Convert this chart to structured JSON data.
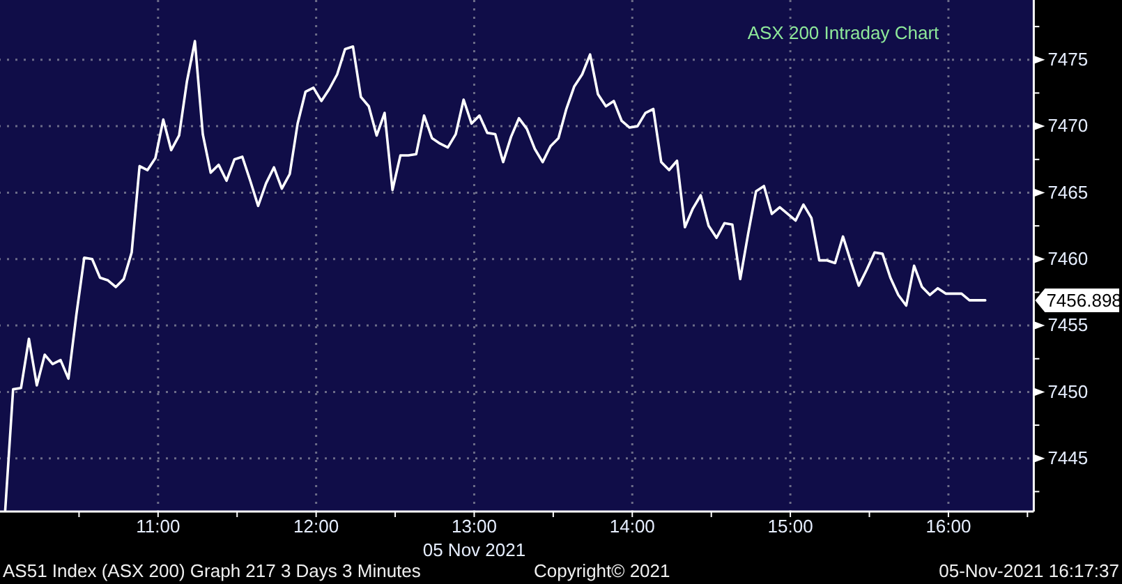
{
  "chart_data": {
    "type": "line",
    "title": "ASX 200 Intraday Chart",
    "xlabel": "05 Nov 2021",
    "annotations": [
      "AS51 Index (ASX 200) Graph 217 3 Days 3 Minutes",
      "Copyright© 2021",
      "05-Nov-2021 16:17:37",
      "7456.898"
    ],
    "x": [
      10.033,
      10.083,
      10.133,
      10.183,
      10.233,
      10.283,
      10.333,
      10.383,
      10.433,
      10.483,
      10.533,
      10.583,
      10.633,
      10.683,
      10.733,
      10.783,
      10.833,
      10.883,
      10.933,
      10.983,
      11.033,
      11.083,
      11.133,
      11.183,
      11.233,
      11.283,
      11.333,
      11.383,
      11.433,
      11.483,
      11.533,
      11.583,
      11.633,
      11.683,
      11.733,
      11.783,
      11.833,
      11.883,
      11.933,
      11.983,
      12.033,
      12.083,
      12.133,
      12.183,
      12.233,
      12.283,
      12.333,
      12.383,
      12.433,
      12.483,
      12.533,
      12.583,
      12.633,
      12.683,
      12.733,
      12.783,
      12.833,
      12.883,
      12.933,
      12.983,
      13.033,
      13.083,
      13.133,
      13.183,
      13.233,
      13.283,
      13.333,
      13.383,
      13.433,
      13.483,
      13.533,
      13.583,
      13.633,
      13.683,
      13.733,
      13.783,
      13.833,
      13.883,
      13.933,
      13.983,
      14.033,
      14.083,
      14.133,
      14.183,
      14.233,
      14.283,
      14.333,
      14.383,
      14.433,
      14.483,
      14.533,
      14.583,
      14.633,
      14.683,
      14.733,
      14.783,
      14.833,
      14.883,
      14.933,
      14.983,
      15.033,
      15.083,
      15.133,
      15.183,
      15.233,
      15.283,
      15.333,
      15.383,
      15.433,
      15.483,
      15.533,
      15.583,
      15.633,
      15.683,
      15.733,
      15.783,
      15.833,
      15.883,
      15.933,
      15.983,
      16.033,
      16.083,
      16.133,
      16.183,
      16.233
    ],
    "values": [
      7441.1,
      7450.2,
      7450.3,
      7454.0,
      7450.5,
      7452.8,
      7452.1,
      7452.4,
      7451.0,
      7455.8,
      7460.1,
      7460.0,
      7458.6,
      7458.4,
      7457.9,
      7458.5,
      7460.5,
      7467.0,
      7466.7,
      7467.6,
      7470.5,
      7468.2,
      7469.3,
      7473.4,
      7476.4,
      7469.4,
      7466.5,
      7467.1,
      7465.9,
      7467.5,
      7467.7,
      7465.9,
      7464.0,
      7465.7,
      7466.9,
      7465.3,
      7466.4,
      7470.2,
      7472.6,
      7472.9,
      7471.9,
      7472.8,
      7473.9,
      7475.8,
      7476.0,
      7472.2,
      7471.5,
      7469.3,
      7471.0,
      7465.2,
      7467.8,
      7467.8,
      7467.9,
      7470.8,
      7469.1,
      7468.7,
      7468.4,
      7469.4,
      7472.0,
      7470.2,
      7470.8,
      7469.5,
      7469.4,
      7467.3,
      7469.2,
      7470.6,
      7469.8,
      7468.3,
      7467.3,
      7468.5,
      7469.1,
      7471.3,
      7473.0,
      7473.9,
      7475.4,
      7472.4,
      7471.5,
      7471.9,
      7470.4,
      7469.9,
      7470.0,
      7471.0,
      7471.3,
      7467.3,
      7466.7,
      7467.4,
      7462.4,
      7463.8,
      7464.8,
      7462.5,
      7461.6,
      7462.7,
      7462.6,
      7458.5,
      7461.9,
      7465.1,
      7465.5,
      7463.4,
      7463.9,
      7463.4,
      7462.9,
      7464.1,
      7463.1,
      7459.9,
      7459.9,
      7459.7,
      7461.7,
      7459.8,
      7458.0,
      7459.2,
      7460.5,
      7460.4,
      7458.6,
      7457.3,
      7456.5,
      7459.5,
      7457.9,
      7457.3,
      7457.8,
      7457.4,
      7457.4,
      7457.4,
      7456.9,
      7456.9,
      7456.898
    ],
    "color": "#ffffff",
    "xlim": [
      10.0,
      16.54
    ],
    "ylim": [
      7441,
      7479.5
    ],
    "xticks": [
      {
        "value": 10.5,
        "label": null
      },
      {
        "value": 11,
        "label": "11:00"
      },
      {
        "value": 11.5,
        "label": null
      },
      {
        "value": 12,
        "label": "12:00"
      },
      {
        "value": 12.5,
        "label": null
      },
      {
        "value": 13,
        "label": "13:00"
      },
      {
        "value": 13.5,
        "label": null
      },
      {
        "value": 14,
        "label": "14:00"
      },
      {
        "value": 14.5,
        "label": null
      },
      {
        "value": 15,
        "label": "15:00"
      },
      {
        "value": 15.5,
        "label": null
      },
      {
        "value": 16,
        "label": "16:00"
      },
      {
        "value": 16.5,
        "label": null
      }
    ],
    "yticks": [
      {
        "value": 7442.5,
        "label": null
      },
      7445,
      {
        "value": 7447.5,
        "label": null
      },
      7450,
      {
        "value": 7452.5,
        "label": null
      },
      7455,
      {
        "value": 7457.5,
        "label": null
      },
      7460,
      {
        "value": 7462.5,
        "label": null
      },
      7465,
      {
        "value": 7467.5,
        "label": null
      },
      7470,
      {
        "value": 7472.5,
        "label": null
      },
      7475,
      {
        "value": 7477.5,
        "label": null
      }
    ],
    "grid": true
  }
}
